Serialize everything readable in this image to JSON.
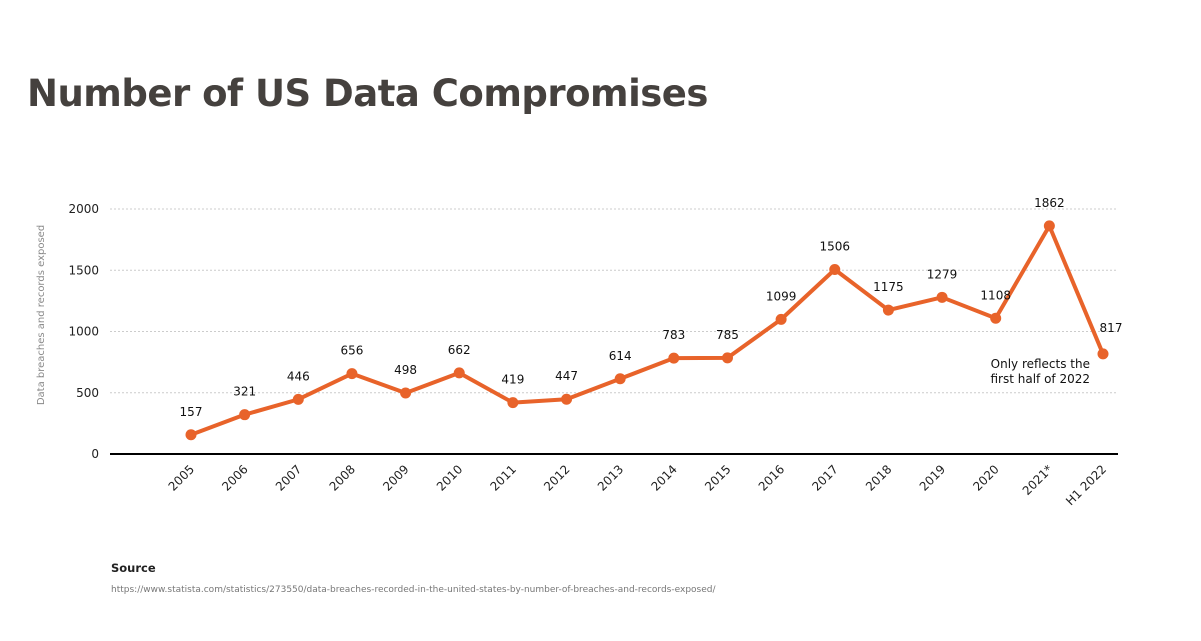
{
  "title": "Number of US Data Compromises",
  "source": {
    "label": "Source",
    "url": "https://www.statista.com/statistics/273550/data-breaches-recorded-in-the-united-states-by-number-of-breaches-and-records-exposed/"
  },
  "colors": {
    "line": "#e8632a",
    "axis": "#000000",
    "grid": "#cccccc",
    "title": "#45413e"
  },
  "chart_data": {
    "type": "line",
    "title": "Number of US Data Compromises",
    "xlabel": "",
    "ylabel": "Data breaches and records exposed",
    "categories": [
      "2005",
      "2006",
      "2007",
      "2008",
      "2009",
      "2010",
      "2011",
      "2012",
      "2013",
      "2014",
      "2015",
      "2016",
      "2017",
      "2018",
      "2019",
      "2020",
      "2021*",
      "H1 2022"
    ],
    "values": [
      157,
      321,
      446,
      656,
      498,
      662,
      419,
      447,
      614,
      783,
      785,
      1099,
      1506,
      1175,
      1279,
      1108,
      1862,
      817
    ],
    "data_labels": [
      "157",
      "321",
      "446",
      "656",
      "498",
      "662",
      "419",
      "447",
      "614",
      "783",
      "785",
      "1099",
      "1506",
      "1175",
      "1279",
      "1108",
      "1862",
      "817"
    ],
    "ylim": [
      0,
      2000
    ],
    "yticks": [
      0,
      500,
      1000,
      1500,
      2000
    ],
    "ytick_labels": [
      "0",
      "500",
      "1000",
      "1500",
      "2000"
    ],
    "grid": true,
    "legend": "none",
    "annotations": [
      {
        "category": "H1 2022",
        "lines": [
          "Only reflects the",
          "first half of 2022"
        ]
      }
    ]
  }
}
